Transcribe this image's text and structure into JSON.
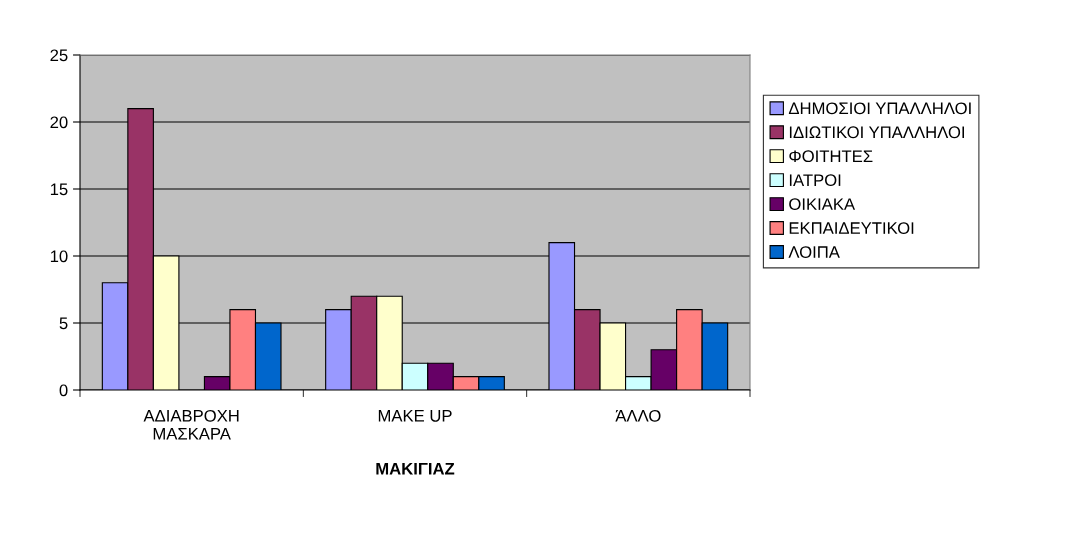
{
  "chart_data": {
    "type": "bar",
    "xlabel": "ΜΑΚΙΓΙΑΖ",
    "categories": [
      "ΑΔΙΑΒΡΟΧΗ\nΜΑΣΚΑΡΑ",
      "MAKE UP",
      "ΆΛΛΟ"
    ],
    "series": [
      {
        "name": "ΔΗΜΟΣΙΟΙ ΥΠΑΛΛΗΛΟΙ",
        "color": "#9999ff",
        "values": [
          8,
          6,
          11
        ]
      },
      {
        "name": "ΙΔΙΩΤΙΚΟΙ ΥΠΑΛΛΗΛΟΙ",
        "color": "#993366",
        "values": [
          21,
          7,
          6
        ]
      },
      {
        "name": "ΦΟΙΤΗΤΕΣ",
        "color": "#ffffcc",
        "values": [
          10,
          7,
          5
        ]
      },
      {
        "name": "ΙΑΤΡΟΙ",
        "color": "#ccffff",
        "values": [
          null,
          2,
          1
        ]
      },
      {
        "name": "ΟΙΚΙΑΚΑ",
        "color": "#660066",
        "values": [
          1,
          2,
          3
        ]
      },
      {
        "name": "ΕΚΠΑΙΔΕΥΤΙΚΟΙ",
        "color": "#ff8080",
        "values": [
          6,
          1,
          6
        ]
      },
      {
        "name": "ΛΟΙΠΑ",
        "color": "#0066cc",
        "values": [
          5,
          1,
          5
        ]
      }
    ],
    "ylim": [
      0,
      25
    ],
    "yticks": [
      0,
      5,
      10,
      15,
      20,
      25
    ],
    "grid": "y",
    "legend": "right"
  }
}
